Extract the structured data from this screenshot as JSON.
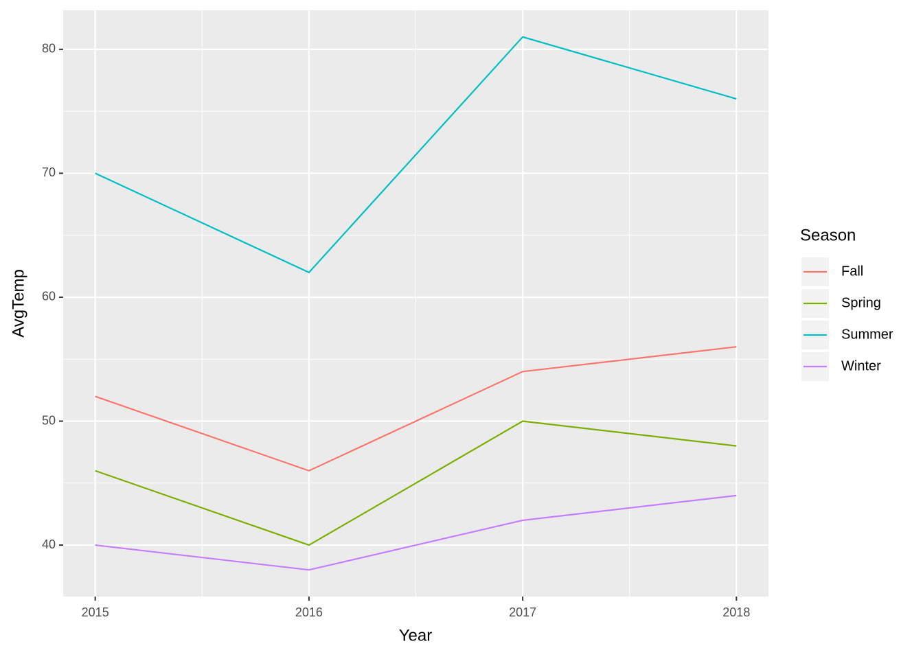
{
  "chart_data": {
    "type": "line",
    "x_label": "Year",
    "y_label": "AvgTemp",
    "x": [
      2015,
      2016,
      2017,
      2018
    ],
    "series": [
      {
        "name": "Fall",
        "color": "#F8766D",
        "values": [
          52,
          46,
          54,
          56
        ]
      },
      {
        "name": "Spring",
        "color": "#7CAE00",
        "values": [
          46,
          40,
          50,
          48
        ]
      },
      {
        "name": "Summer",
        "color": "#00BFC4",
        "values": [
          70,
          62,
          81,
          76
        ]
      },
      {
        "name": "Winter",
        "color": "#C77CFF",
        "values": [
          40,
          38,
          42,
          44
        ]
      }
    ],
    "xlim": [
      2014.85,
      2018.15
    ],
    "xticks": [
      2015,
      2016,
      2017,
      2018
    ],
    "ylim": [
      35.85,
      83.15
    ],
    "yticks": [
      40,
      50,
      60,
      70,
      80
    ],
    "grid": true,
    "legend_title": "Season",
    "legend_position": "right"
  }
}
